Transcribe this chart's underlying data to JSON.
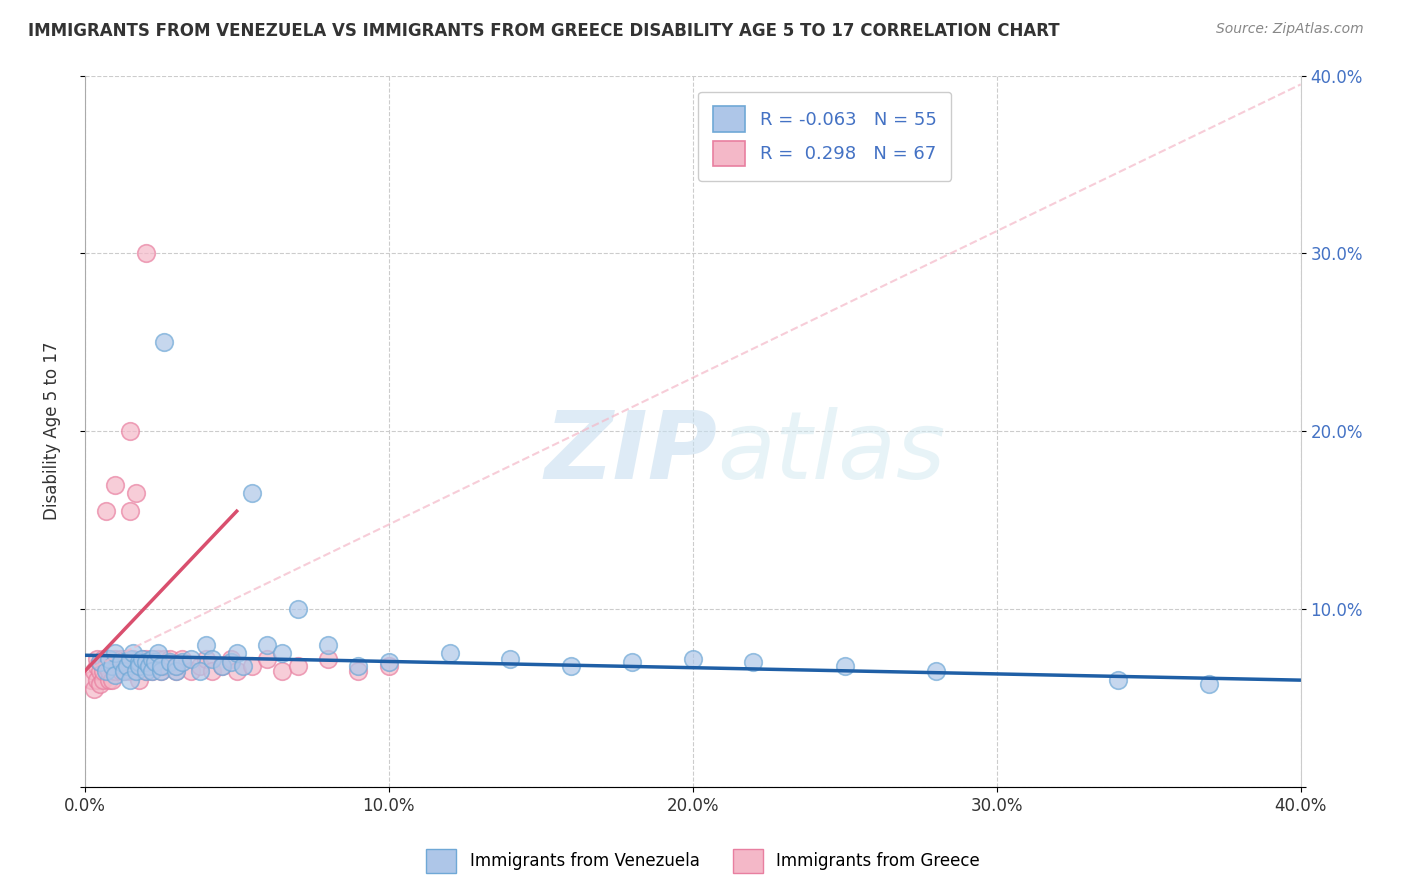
{
  "title": "IMMIGRANTS FROM VENEZUELA VS IMMIGRANTS FROM GREECE DISABILITY AGE 5 TO 17 CORRELATION CHART",
  "source": "Source: ZipAtlas.com",
  "ylabel": "Disability Age 5 to 17",
  "xlim": [
    0.0,
    0.4
  ],
  "ylim": [
    0.0,
    0.4
  ],
  "xticks": [
    0.0,
    0.1,
    0.2,
    0.3,
    0.4
  ],
  "yticks": [
    0.0,
    0.1,
    0.2,
    0.3,
    0.4
  ],
  "xticklabels": [
    "0.0%",
    "10.0%",
    "20.0%",
    "30.0%",
    "40.0%"
  ],
  "yticklabels_left": [
    "",
    "",
    "",
    "",
    ""
  ],
  "yticklabels_right": [
    "",
    "10.0%",
    "20.0%",
    "30.0%",
    "40.0%"
  ],
  "blue_color": "#aec6e8",
  "blue_edge": "#6fa8d6",
  "pink_color": "#f4b8c8",
  "pink_edge": "#e87fa0",
  "blue_line_color": "#1f5fa6",
  "pink_line_color": "#d94f6e",
  "dashed_line_color": "#f4b8c8",
  "watermark_zip": "ZIP",
  "watermark_atlas": "atlas",
  "background_color": "#ffffff",
  "venezuela_x": [
    0.005,
    0.007,
    0.008,
    0.009,
    0.01,
    0.01,
    0.012,
    0.013,
    0.014,
    0.015,
    0.015,
    0.016,
    0.017,
    0.018,
    0.018,
    0.019,
    0.02,
    0.02,
    0.021,
    0.022,
    0.022,
    0.023,
    0.024,
    0.025,
    0.025,
    0.026,
    0.028,
    0.03,
    0.03,
    0.032,
    0.035,
    0.038,
    0.04,
    0.042,
    0.045,
    0.048,
    0.05,
    0.052,
    0.055,
    0.06,
    0.065,
    0.07,
    0.08,
    0.09,
    0.1,
    0.12,
    0.14,
    0.16,
    0.18,
    0.2,
    0.22,
    0.25,
    0.28,
    0.34,
    0.37
  ],
  "venezuela_y": [
    0.07,
    0.065,
    0.072,
    0.068,
    0.063,
    0.075,
    0.07,
    0.065,
    0.068,
    0.072,
    0.06,
    0.075,
    0.065,
    0.07,
    0.068,
    0.072,
    0.065,
    0.07,
    0.068,
    0.072,
    0.065,
    0.07,
    0.075,
    0.065,
    0.068,
    0.25,
    0.07,
    0.065,
    0.068,
    0.07,
    0.072,
    0.065,
    0.08,
    0.072,
    0.068,
    0.07,
    0.075,
    0.068,
    0.165,
    0.08,
    0.075,
    0.1,
    0.08,
    0.068,
    0.07,
    0.075,
    0.072,
    0.068,
    0.07,
    0.072,
    0.07,
    0.068,
    0.065,
    0.06,
    0.058
  ],
  "greece_x": [
    0.002,
    0.003,
    0.003,
    0.004,
    0.004,
    0.004,
    0.005,
    0.005,
    0.005,
    0.006,
    0.006,
    0.006,
    0.007,
    0.007,
    0.008,
    0.008,
    0.008,
    0.009,
    0.009,
    0.01,
    0.01,
    0.01,
    0.011,
    0.012,
    0.012,
    0.013,
    0.013,
    0.014,
    0.015,
    0.015,
    0.016,
    0.016,
    0.017,
    0.018,
    0.018,
    0.019,
    0.02,
    0.02,
    0.021,
    0.022,
    0.022,
    0.023,
    0.024,
    0.025,
    0.025,
    0.026,
    0.027,
    0.028,
    0.03,
    0.03,
    0.032,
    0.035,
    0.038,
    0.04,
    0.042,
    0.045,
    0.048,
    0.05,
    0.055,
    0.06,
    0.065,
    0.07,
    0.08,
    0.09,
    0.1,
    0.02,
    0.015
  ],
  "greece_y": [
    0.06,
    0.055,
    0.065,
    0.06,
    0.068,
    0.072,
    0.058,
    0.065,
    0.07,
    0.06,
    0.072,
    0.065,
    0.068,
    0.155,
    0.06,
    0.065,
    0.072,
    0.06,
    0.068,
    0.065,
    0.072,
    0.17,
    0.068,
    0.065,
    0.072,
    0.065,
    0.068,
    0.072,
    0.065,
    0.155,
    0.068,
    0.072,
    0.165,
    0.06,
    0.068,
    0.072,
    0.065,
    0.072,
    0.068,
    0.072,
    0.065,
    0.068,
    0.072,
    0.065,
    0.068,
    0.072,
    0.068,
    0.072,
    0.065,
    0.068,
    0.072,
    0.065,
    0.068,
    0.072,
    0.065,
    0.068,
    0.072,
    0.065,
    0.068,
    0.072,
    0.065,
    0.068,
    0.072,
    0.065,
    0.068,
    0.3,
    0.2
  ],
  "blue_trend": [
    0.0,
    0.4,
    0.074,
    0.06
  ],
  "pink_trend_solid": [
    0.0,
    0.05,
    0.065,
    0.155
  ],
  "pink_trend_dashed": [
    0.0,
    0.4,
    0.065,
    0.395
  ]
}
